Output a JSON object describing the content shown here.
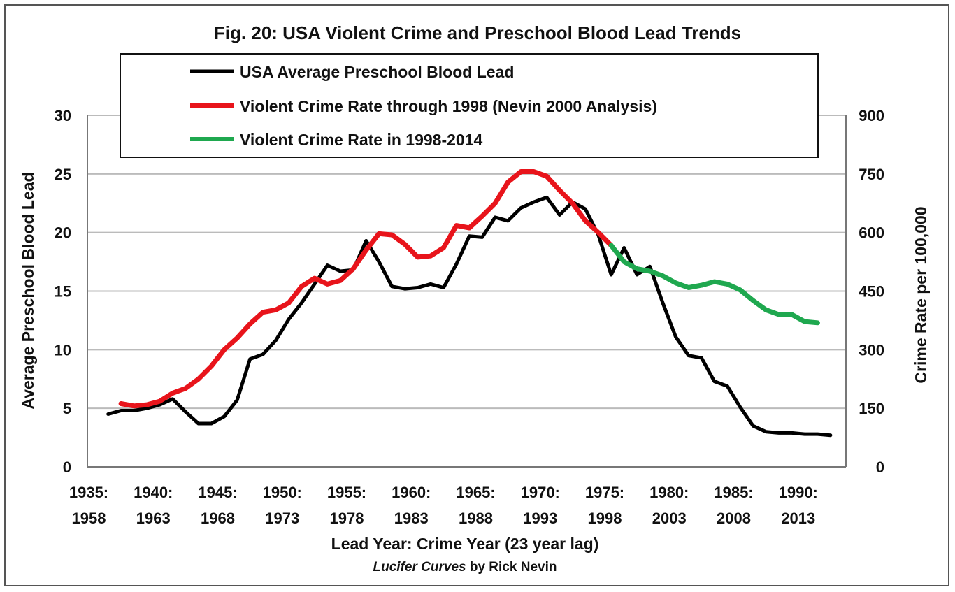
{
  "chart_data": {
    "type": "line",
    "title": "Fig. 20: USA Violent Crime and Preschool Blood Lead Trends",
    "xlabel": "Lead Year: Crime Year (23 year lag)",
    "caption_italic": "Lucifer Curves",
    "caption_rest": " by Rick Nevin",
    "ylabel_left": "Average Preschool Blood Lead",
    "ylabel_right": "Crime Rate per 100,000",
    "ylim_left": [
      0,
      30
    ],
    "ylim_right": [
      0,
      900
    ],
    "yticks_left": [
      "0",
      "5",
      "10",
      "15",
      "20",
      "25",
      "30"
    ],
    "yticks_right": [
      "0",
      "150",
      "300",
      "450",
      "600",
      "750",
      "900"
    ],
    "xticks": [
      {
        "top": "1935:",
        "bottom": "1958"
      },
      {
        "top": "1940:",
        "bottom": "1963"
      },
      {
        "top": "1945:",
        "bottom": "1968"
      },
      {
        "top": "1950:",
        "bottom": "1973"
      },
      {
        "top": "1955:",
        "bottom": "1978"
      },
      {
        "top": "1960:",
        "bottom": "1983"
      },
      {
        "top": "1965:",
        "bottom": "1988"
      },
      {
        "top": "1970:",
        "bottom": "1993"
      },
      {
        "top": "1975:",
        "bottom": "1998"
      },
      {
        "top": "1980:",
        "bottom": "2003"
      },
      {
        "top": "1985:",
        "bottom": "2008"
      },
      {
        "top": "1990:",
        "bottom": "2013"
      }
    ],
    "grid": true,
    "legend_position": "top",
    "series": [
      {
        "name": "USA Average Preschool Blood Lead",
        "color": "#000000",
        "axis": "left",
        "start_lead_year": 1936,
        "values": [
          4.5,
          4.8,
          4.8,
          5.0,
          5.3,
          5.8,
          4.7,
          3.7,
          3.7,
          4.3,
          5.7,
          9.2,
          9.6,
          10.8,
          12.6,
          14.0,
          15.6,
          17.2,
          16.7,
          16.8,
          19.3,
          17.5,
          15.4,
          15.2,
          15.3,
          15.6,
          15.3,
          17.3,
          19.7,
          19.6,
          21.3,
          21.0,
          22.1,
          22.6,
          23.0,
          21.5,
          22.6,
          22.0,
          19.8,
          16.4,
          18.7,
          16.4,
          17.1,
          14.0,
          11.1,
          9.5,
          9.3,
          7.3,
          6.9,
          5.1,
          3.5,
          3.0,
          2.9,
          2.9,
          2.8,
          2.8,
          2.7
        ]
      },
      {
        "name": "Violent Crime Rate through 1998 (Nevin 2000 Analysis)",
        "color": "#e8141b",
        "axis": "right",
        "start_lead_year": 1937,
        "values": [
          162,
          156,
          159,
          168,
          189,
          201,
          225,
          258,
          300,
          330,
          366,
          396,
          402,
          420,
          462,
          483,
          468,
          477,
          507,
          555,
          597,
          594,
          570,
          537,
          540,
          561,
          618,
          612,
          642,
          675,
          729,
          756,
          756,
          744,
          708,
          675,
          630,
          600,
          567
        ]
      },
      {
        "name": "Violent Crime Rate in 1998-2014",
        "color": "#1fa84f",
        "axis": "right",
        "start_lead_year": 1975,
        "values": [
          567,
          525,
          507,
          501,
          489,
          471,
          459,
          465,
          474,
          468,
          453,
          426,
          402,
          390,
          390,
          372,
          369
        ]
      }
    ]
  }
}
